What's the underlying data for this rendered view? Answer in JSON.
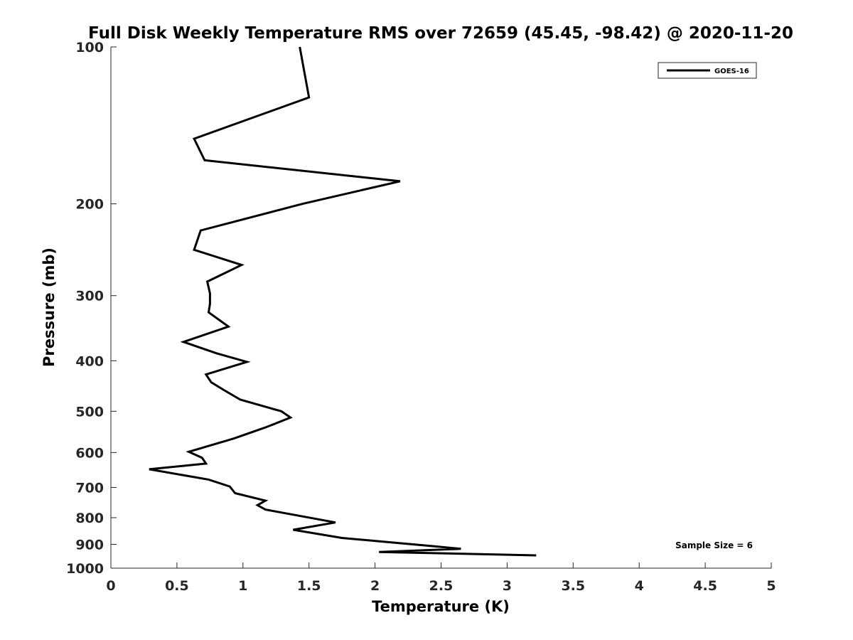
{
  "chart_data": {
    "type": "line",
    "title": "Full Disk Weekly Temperature RMS over 72659 (45.45, -98.42) @ 2020-11-20",
    "xlabel": "Temperature (K)",
    "ylabel": "Pressure (mb)",
    "xlim": [
      0,
      5
    ],
    "ylim": [
      100,
      1000
    ],
    "yscale": "log",
    "y_reversed": true,
    "x_ticks": [
      "0",
      "0.5",
      "1",
      "1.5",
      "2",
      "2.5",
      "3",
      "3.5",
      "4",
      "4.5",
      "5"
    ],
    "y_ticks": [
      "100",
      "200",
      "300",
      "400",
      "500",
      "600",
      "700",
      "800",
      "900",
      "1000"
    ],
    "legend_position": "top-right",
    "annotation": "Sample Size = 6",
    "series": [
      {
        "name": "GOES-16",
        "color": "#000000",
        "points": [
          [
            1.43,
            100
          ],
          [
            1.5,
            125
          ],
          [
            0.63,
            150
          ],
          [
            0.71,
            165
          ],
          [
            2.19,
            181
          ],
          [
            1.45,
            200
          ],
          [
            0.68,
            225
          ],
          [
            0.63,
            245
          ],
          [
            0.99,
            262
          ],
          [
            0.73,
            282
          ],
          [
            0.75,
            297
          ],
          [
            0.75,
            311
          ],
          [
            0.74,
            323
          ],
          [
            0.89,
            344
          ],
          [
            0.55,
            368
          ],
          [
            0.8,
            387
          ],
          [
            1.03,
            402
          ],
          [
            0.72,
            425
          ],
          [
            0.76,
            440
          ],
          [
            0.86,
            456
          ],
          [
            0.98,
            475
          ],
          [
            1.29,
            500
          ],
          [
            1.36,
            514
          ],
          [
            1.17,
            537
          ],
          [
            0.93,
            564
          ],
          [
            0.59,
            598
          ],
          [
            0.69,
            614
          ],
          [
            0.72,
            630
          ],
          [
            0.29,
            646
          ],
          [
            0.74,
            676
          ],
          [
            0.9,
            697
          ],
          [
            0.94,
            718
          ],
          [
            1.17,
            742
          ],
          [
            1.11,
            757
          ],
          [
            1.17,
            772
          ],
          [
            1.7,
            817
          ],
          [
            1.38,
            844
          ],
          [
            1.75,
            875
          ],
          [
            2.43,
            907
          ],
          [
            2.65,
            918
          ],
          [
            2.03,
            931
          ],
          [
            3.22,
            945
          ]
        ]
      }
    ]
  }
}
